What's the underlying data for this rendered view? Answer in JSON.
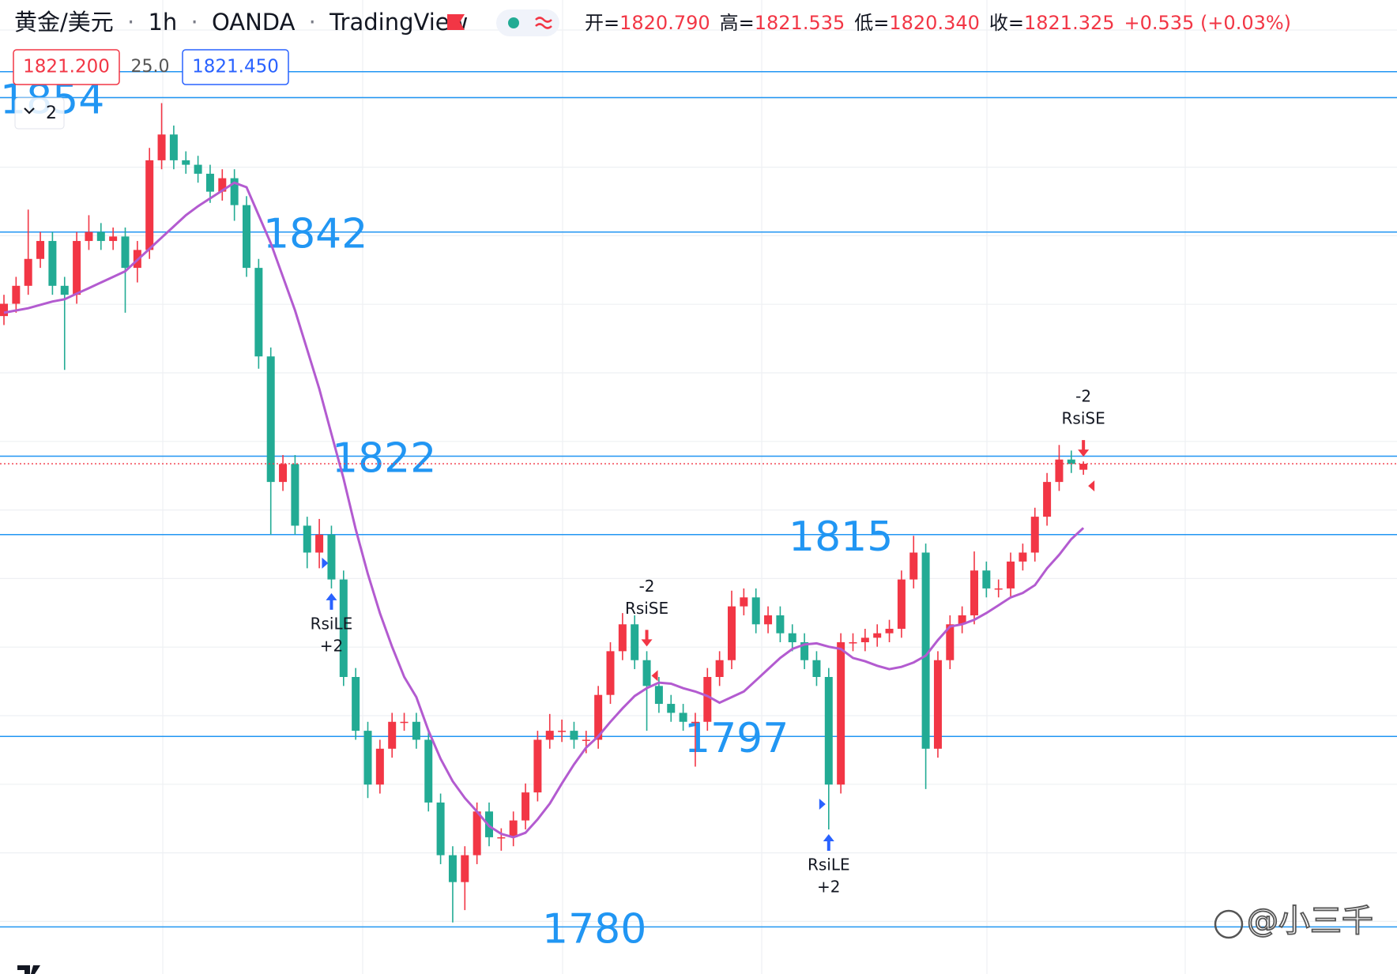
{
  "header": {
    "symbol": "黄金/美元",
    "separator": "·",
    "interval": "1h",
    "exchange": "OANDA",
    "source": "TradingView",
    "ohlc": [
      {
        "label": "开=",
        "value": "1820.790"
      },
      {
        "label": "高=",
        "value": "1821.535"
      },
      {
        "label": "低=",
        "value": "1820.340"
      },
      {
        "label": "收=",
        "value": "1821.325"
      }
    ],
    "change": "+0.535 (+0.03%)",
    "bid": "1821.200",
    "spread": "25.0",
    "ask": "1821.450",
    "indicator_count": "2"
  },
  "chart_data": {
    "type": "candlestick",
    "ylim": [
      1775.8,
      1862.7
    ],
    "up_color": "#f23645",
    "down_color": "#22ab94",
    "open": [
      1834.5,
      1835.6,
      1837.2,
      1839.6,
      1841.2,
      1837.2,
      1836.4,
      1841.2,
      1842.0,
      1841.2,
      1841.6,
      1838.8,
      1840.4,
      1848.4,
      1850.7,
      1848.4,
      1848.0,
      1847.2,
      1845.6,
      1846.8,
      1844.4,
      1838.8,
      1830.9,
      1819.7,
      1821.3,
      1815.8,
      1813.4,
      1815.0,
      1811.0,
      1802.3,
      1797.5,
      1792.7,
      1795.9,
      1798.3,
      1798.3,
      1796.7,
      1791.1,
      1786.4,
      1784.0,
      1786.4,
      1790.3,
      1788.0,
      1788.0,
      1789.5,
      1792.0,
      1796.7,
      1797.5,
      1797.5,
      1796.7,
      1796.7,
      1800.7,
      1804.6,
      1807.0,
      1803.8,
      1801.5,
      1799.9,
      1799.1,
      1798.3,
      1798.3,
      1802.3,
      1803.8,
      1808.6,
      1809.4,
      1807.0,
      1807.8,
      1806.2,
      1805.4,
      1803.8,
      1802.3,
      1792.7,
      1805.4,
      1805.4,
      1805.8,
      1806.2,
      1806.6,
      1811.0,
      1813.4,
      1795.9,
      1803.8,
      1807.0,
      1807.8,
      1811.8,
      1810.2,
      1810.2,
      1812.6,
      1813.4,
      1816.6,
      1819.7,
      1821.7,
      1820.79
    ],
    "high": [
      1836.4,
      1838.0,
      1844.0,
      1842.0,
      1842.0,
      1838.0,
      1842.0,
      1843.5,
      1842.8,
      1842.4,
      1842.4,
      1841.2,
      1849.5,
      1853.5,
      1851.5,
      1849.2,
      1848.8,
      1848.0,
      1847.6,
      1847.6,
      1845.2,
      1839.6,
      1831.7,
      1822.1,
      1822.1,
      1816.6,
      1816.4,
      1815.8,
      1811.8,
      1803.1,
      1798.3,
      1796.7,
      1799.1,
      1799.1,
      1799.1,
      1797.5,
      1791.9,
      1787.2,
      1787.2,
      1791.1,
      1791.1,
      1788.8,
      1790.3,
      1792.8,
      1797.5,
      1799.0,
      1798.5,
      1798.3,
      1797.5,
      1801.5,
      1805.4,
      1808.0,
      1807.8,
      1804.6,
      1802.3,
      1800.7,
      1799.9,
      1799.1,
      1803.1,
      1804.6,
      1810.0,
      1810.2,
      1810.2,
      1808.6,
      1808.6,
      1807.0,
      1806.2,
      1804.6,
      1803.1,
      1806.2,
      1806.2,
      1806.6,
      1807.0,
      1807.4,
      1811.8,
      1814.9,
      1814.2,
      1804.6,
      1807.8,
      1808.6,
      1813.5,
      1812.6,
      1811.0,
      1813.4,
      1814.2,
      1817.4,
      1820.5,
      1823.0,
      1822.5,
      1821.535
    ],
    "low": [
      1833.7,
      1834.8,
      1836.4,
      1838.8,
      1836.4,
      1829.7,
      1835.6,
      1840.4,
      1840.4,
      1840.4,
      1834.8,
      1837.5,
      1839.6,
      1847.6,
      1847.6,
      1847.2,
      1846.4,
      1844.6,
      1844.8,
      1843.0,
      1838.0,
      1829.8,
      1815.0,
      1818.9,
      1815.0,
      1812.0,
      1812.0,
      1810.2,
      1801.5,
      1796.7,
      1791.5,
      1791.9,
      1795.1,
      1797.5,
      1795.9,
      1790.3,
      1785.6,
      1780.4,
      1781.5,
      1785.6,
      1787.2,
      1786.8,
      1787.2,
      1788.7,
      1791.2,
      1795.9,
      1796.5,
      1795.9,
      1795.5,
      1795.9,
      1799.9,
      1803.8,
      1803.0,
      1797.5,
      1799.1,
      1798.3,
      1797.5,
      1794.3,
      1797.5,
      1801.5,
      1803.0,
      1807.8,
      1806.2,
      1806.2,
      1805.4,
      1804.6,
      1803.0,
      1801.5,
      1788.7,
      1791.9,
      1804.6,
      1804.6,
      1805.0,
      1805.4,
      1805.8,
      1810.2,
      1792.3,
      1795.1,
      1803.0,
      1806.2,
      1807.0,
      1809.4,
      1809.4,
      1809.4,
      1811.8,
      1812.6,
      1815.8,
      1818.9,
      1820.5,
      1820.34
    ],
    "close": [
      1835.6,
      1837.2,
      1839.6,
      1841.2,
      1837.2,
      1836.4,
      1841.2,
      1842.0,
      1841.2,
      1841.6,
      1838.8,
      1840.4,
      1848.4,
      1850.7,
      1848.4,
      1848.0,
      1847.2,
      1845.6,
      1846.8,
      1844.4,
      1838.8,
      1830.9,
      1819.7,
      1821.3,
      1815.8,
      1813.4,
      1815.0,
      1811.0,
      1802.3,
      1797.5,
      1792.7,
      1795.9,
      1798.3,
      1798.3,
      1796.7,
      1791.1,
      1786.4,
      1784.0,
      1786.4,
      1790.3,
      1788.0,
      1788.0,
      1789.5,
      1792.0,
      1796.7,
      1797.5,
      1797.5,
      1796.7,
      1796.7,
      1800.7,
      1804.6,
      1807.0,
      1803.8,
      1801.5,
      1799.9,
      1799.1,
      1798.3,
      1798.3,
      1802.3,
      1803.8,
      1808.6,
      1809.4,
      1807.0,
      1807.8,
      1806.2,
      1805.4,
      1803.8,
      1802.3,
      1792.7,
      1805.4,
      1805.4,
      1805.8,
      1806.2,
      1806.6,
      1811.0,
      1813.4,
      1795.9,
      1803.8,
      1807.0,
      1807.8,
      1811.8,
      1810.2,
      1810.2,
      1812.6,
      1813.4,
      1816.6,
      1819.7,
      1821.7,
      1821.3,
      1821.325
    ],
    "ma": {
      "color": "#b35bd0",
      "values": [
        1834.8,
        1835.0,
        1835.2,
        1835.5,
        1835.8,
        1836.0,
        1836.5,
        1837.0,
        1837.5,
        1838.0,
        1838.5,
        1839.5,
        1840.5,
        1841.5,
        1842.5,
        1843.5,
        1844.3,
        1845.0,
        1845.7,
        1846.4,
        1846.0,
        1843.5,
        1841.0,
        1838.0,
        1835.0,
        1831.5,
        1828.0,
        1824.0,
        1820.0,
        1815.5,
        1811.5,
        1808.0,
        1805.0,
        1802.3,
        1800.5,
        1797.5,
        1795.0,
        1793.0,
        1791.5,
        1790.3,
        1789.0,
        1788.3,
        1788.0,
        1788.4,
        1789.6,
        1791.0,
        1792.8,
        1794.5,
        1796.0,
        1797.0,
        1798.3,
        1799.5,
        1800.6,
        1801.3,
        1801.8,
        1801.7,
        1801.3,
        1801.0,
        1800.6,
        1800.0,
        1800.5,
        1801.0,
        1802.0,
        1803.0,
        1804.0,
        1804.8,
        1805.2,
        1805.3,
        1805.0,
        1804.8,
        1804.0,
        1803.7,
        1803.3,
        1803.0,
        1803.2,
        1803.6,
        1804.2,
        1805.6,
        1806.8,
        1807.0,
        1807.4,
        1808.0,
        1808.7,
        1809.4,
        1809.8,
        1810.5,
        1812.0,
        1813.2,
        1814.6,
        1815.6
      ]
    },
    "levels": [
      {
        "value": 1856.3
      },
      {
        "value": 1854,
        "label": "1854"
      },
      {
        "value": 1842,
        "label": "1842"
      },
      {
        "value": 1822,
        "label": "1822"
      },
      {
        "value": 1815,
        "label": "1815"
      },
      {
        "value": 1797,
        "label": "1797"
      },
      {
        "value": 1780,
        "label": "1780"
      }
    ],
    "level_color": "#2196f3",
    "signals": [
      {
        "index": 27,
        "side": "long",
        "label": "RsiLE",
        "qty": "+2"
      },
      {
        "index": 53,
        "side": "short",
        "label": "RsiSE",
        "qty": "-2"
      },
      {
        "index": 68,
        "side": "long",
        "label": "RsiLE",
        "qty": "+2"
      },
      {
        "index": 89,
        "side": "short",
        "label": "RsiSE",
        "qty": "-2"
      }
    ]
  },
  "watermark": "@小三千"
}
